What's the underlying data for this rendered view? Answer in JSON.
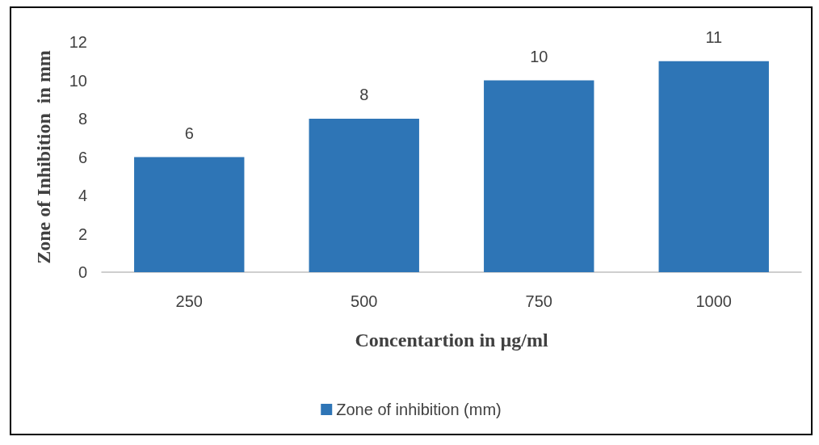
{
  "chart_data": {
    "type": "bar",
    "xlabel": "Concentartion in µg/ml",
    "ylabel": "Zone of Inhibition  in mm",
    "categories": [
      "250",
      "500",
      "750",
      "1000"
    ],
    "series": [
      {
        "name": "Zone of inhibition (mm)",
        "color": "#2e75b6",
        "values": [
          6,
          8,
          10,
          11
        ]
      }
    ],
    "ylim": [
      0,
      12
    ],
    "yticks": [
      0,
      2,
      4,
      6,
      8,
      10,
      12
    ],
    "grid": false,
    "legend": "bottom",
    "data_labels": true
  }
}
